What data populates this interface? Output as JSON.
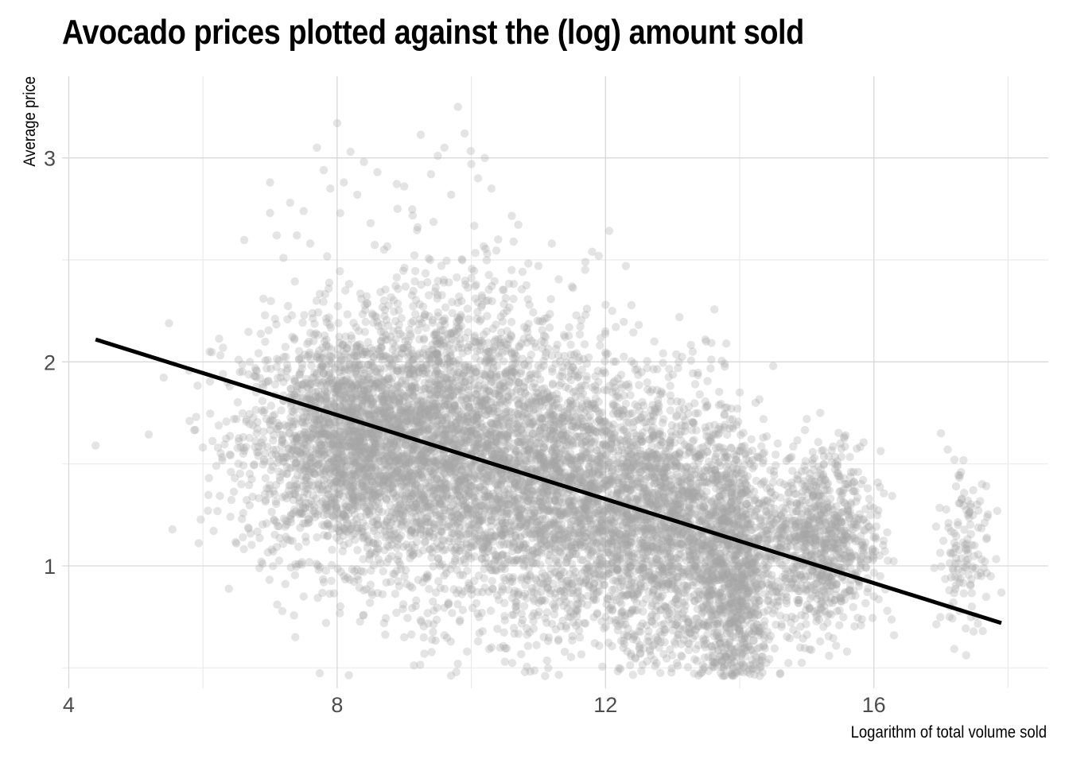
{
  "chart_data": {
    "type": "scatter",
    "title": "Avocado prices plotted against the (log) amount sold",
    "xlabel": "Logarithm of total volume sold",
    "ylabel": "Average price",
    "xlim": [
      3.9,
      18.6
    ],
    "ylim": [
      0.4,
      3.4
    ],
    "x_ticks": [
      4,
      8,
      12,
      16
    ],
    "y_ticks": [
      1,
      2,
      3
    ],
    "x_minor_grid": [
      6,
      10,
      14,
      18
    ],
    "y_minor_grid": [
      0.5,
      1.5,
      2.5
    ],
    "grid": true,
    "legend": "none",
    "point_color": "#a6a6a6",
    "point_alpha": 0.3,
    "line_color": "#000000",
    "points": [
      [
        4.4,
        1.59
      ],
      [
        5.9,
        1.73
      ],
      [
        6.0,
        1.58
      ],
      [
        6.1,
        2.05
      ],
      [
        6.3,
        2.07
      ],
      [
        6.2,
        1.49
      ],
      [
        6.3,
        1.94
      ],
      [
        6.4,
        1.88
      ],
      [
        6.5,
        1.72
      ],
      [
        6.6,
        1.55
      ],
      [
        6.5,
        1.11
      ],
      [
        6.7,
        2.0
      ],
      [
        6.8,
        1.65
      ],
      [
        6.9,
        2.31
      ],
      [
        7.0,
        2.88
      ],
      [
        7.0,
        2.73
      ],
      [
        7.1,
        2.62
      ],
      [
        7.2,
        2.51
      ],
      [
        7.3,
        2.78
      ],
      [
        7.4,
        2.62
      ],
      [
        7.5,
        2.74
      ],
      [
        7.6,
        2.58
      ],
      [
        7.7,
        3.05
      ],
      [
        7.8,
        2.94
      ],
      [
        7.9,
        2.85
      ],
      [
        8.0,
        3.17
      ],
      [
        8.1,
        2.88
      ],
      [
        8.2,
        3.03
      ],
      [
        8.3,
        2.82
      ],
      [
        8.4,
        2.98
      ],
      [
        8.5,
        2.68
      ],
      [
        8.6,
        2.93
      ],
      [
        8.7,
        2.55
      ],
      [
        8.9,
        2.75
      ],
      [
        9.0,
        2.86
      ],
      [
        9.2,
        2.66
      ],
      [
        9.4,
        2.92
      ],
      [
        9.5,
        3.01
      ],
      [
        9.6,
        3.05
      ],
      [
        9.7,
        2.82
      ],
      [
        9.8,
        3.25
      ],
      [
        9.9,
        3.12
      ],
      [
        10.0,
        2.97
      ],
      [
        10.1,
        2.9
      ],
      [
        10.2,
        3.0
      ],
      [
        10.3,
        2.85
      ],
      [
        10.4,
        2.6
      ],
      [
        10.6,
        2.45
      ],
      [
        11.0,
        2.47
      ],
      [
        11.2,
        2.58
      ],
      [
        11.5,
        2.37
      ],
      [
        11.7,
        2.49
      ],
      [
        11.8,
        2.54
      ],
      [
        11.9,
        2.52
      ],
      [
        12.0,
        2.28
      ],
      [
        12.1,
        2.25
      ],
      [
        13.1,
        2.22
      ],
      [
        13.3,
        2.05
      ],
      [
        13.5,
        2.1
      ],
      [
        13.8,
        2.09
      ],
      [
        14.0,
        1.85
      ],
      [
        14.5,
        1.98
      ],
      [
        15.0,
        1.72
      ],
      [
        15.2,
        1.75
      ],
      [
        15.5,
        1.6
      ],
      [
        16.0,
        0.85
      ],
      [
        16.2,
        0.78
      ],
      [
        16.3,
        0.66
      ],
      [
        17.0,
        1.65
      ],
      [
        17.1,
        1.57
      ],
      [
        17.3,
        1.46
      ],
      [
        17.4,
        1.25
      ],
      [
        17.5,
        1.1
      ],
      [
        17.6,
        0.95
      ],
      [
        17.9,
        0.87
      ],
      [
        7.5,
        0.85
      ],
      [
        7.8,
        0.92
      ],
      [
        8.1,
        0.95
      ],
      [
        8.4,
        0.88
      ],
      [
        8.7,
        0.72
      ],
      [
        9.0,
        0.65
      ],
      [
        9.3,
        0.57
      ],
      [
        9.6,
        0.66
      ],
      [
        9.8,
        0.52
      ],
      [
        10.1,
        0.63
      ],
      [
        10.3,
        0.6
      ],
      [
        10.5,
        0.53
      ],
      [
        10.8,
        0.48
      ],
      [
        11.1,
        0.46
      ],
      [
        11.3,
        0.64
      ],
      [
        11.6,
        0.72
      ],
      [
        12.0,
        0.75
      ],
      [
        12.5,
        0.68
      ],
      [
        12.8,
        0.6
      ],
      [
        13.2,
        0.66
      ],
      [
        13.6,
        0.56
      ],
      [
        13.9,
        0.5
      ],
      [
        14.3,
        0.52
      ],
      [
        14.6,
        0.47
      ],
      [
        14.9,
        0.6
      ],
      [
        15.2,
        0.63
      ],
      [
        15.6,
        0.58
      ]
    ],
    "clusters": [
      {
        "x_mean": 8.2,
        "x_sd": 0.8,
        "y_mean": 1.6,
        "y_sd": 0.28,
        "n": 2200
      },
      {
        "x_mean": 9.7,
        "x_sd": 0.8,
        "y_mean": 1.6,
        "y_sd": 0.4,
        "n": 2200
      },
      {
        "x_mean": 11.4,
        "x_sd": 0.75,
        "y_mean": 1.38,
        "y_sd": 0.33,
        "n": 2000
      },
      {
        "x_mean": 12.9,
        "x_sd": 0.6,
        "y_mean": 1.2,
        "y_sd": 0.32,
        "n": 1600
      },
      {
        "x_mean": 13.9,
        "x_sd": 0.3,
        "y_mean": 1.0,
        "y_sd": 0.3,
        "n": 1000
      },
      {
        "x_mean": 15.2,
        "x_sd": 0.45,
        "y_mean": 1.12,
        "y_sd": 0.22,
        "n": 900
      },
      {
        "x_mean": 17.35,
        "x_sd": 0.2,
        "y_mean": 1.07,
        "y_sd": 0.18,
        "n": 130
      }
    ],
    "fit_line": {
      "x": [
        4.4,
        17.9
      ],
      "y": [
        2.11,
        0.72
      ]
    }
  }
}
